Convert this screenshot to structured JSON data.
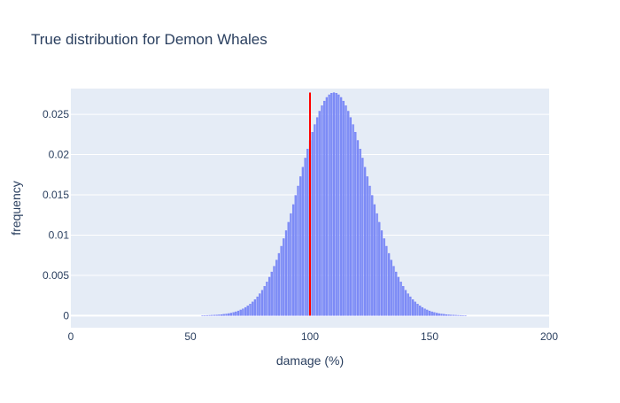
{
  "chart_data": {
    "type": "bar",
    "title": "True distribution for Demon Whales",
    "xlabel": "damage (%)",
    "ylabel": "frequency",
    "xlim": [
      0,
      200
    ],
    "ylim": [
      -0.0015,
      0.0282
    ],
    "x_ticks": [
      0,
      50,
      100,
      150,
      200
    ],
    "x_tick_labels": [
      "0",
      "50",
      "100",
      "150",
      "200"
    ],
    "y_ticks": [
      0,
      0.005,
      0.01,
      0.015,
      0.02,
      0.025
    ],
    "y_tick_labels": [
      "0",
      "0.005",
      "0.01",
      "0.015",
      "0.02",
      "0.025"
    ],
    "grid": true,
    "legend": "none",
    "distribution": {
      "x_start": 40,
      "x_end": 180,
      "x_step": 1,
      "mean": 110,
      "std_dev": 14.4,
      "peak_frequency": 0.0277
    },
    "reference_line": {
      "x": 100,
      "y_from": 0,
      "y_to": 0.0277,
      "color": "#ff0000"
    },
    "colors": {
      "bar_fill": "#7f8ff5",
      "bar_outline": "#636efa",
      "plot_background": "#e5ecf6",
      "grid": "#ffffff",
      "text": "#2a3f5f",
      "title": "#2a3f5f"
    }
  }
}
